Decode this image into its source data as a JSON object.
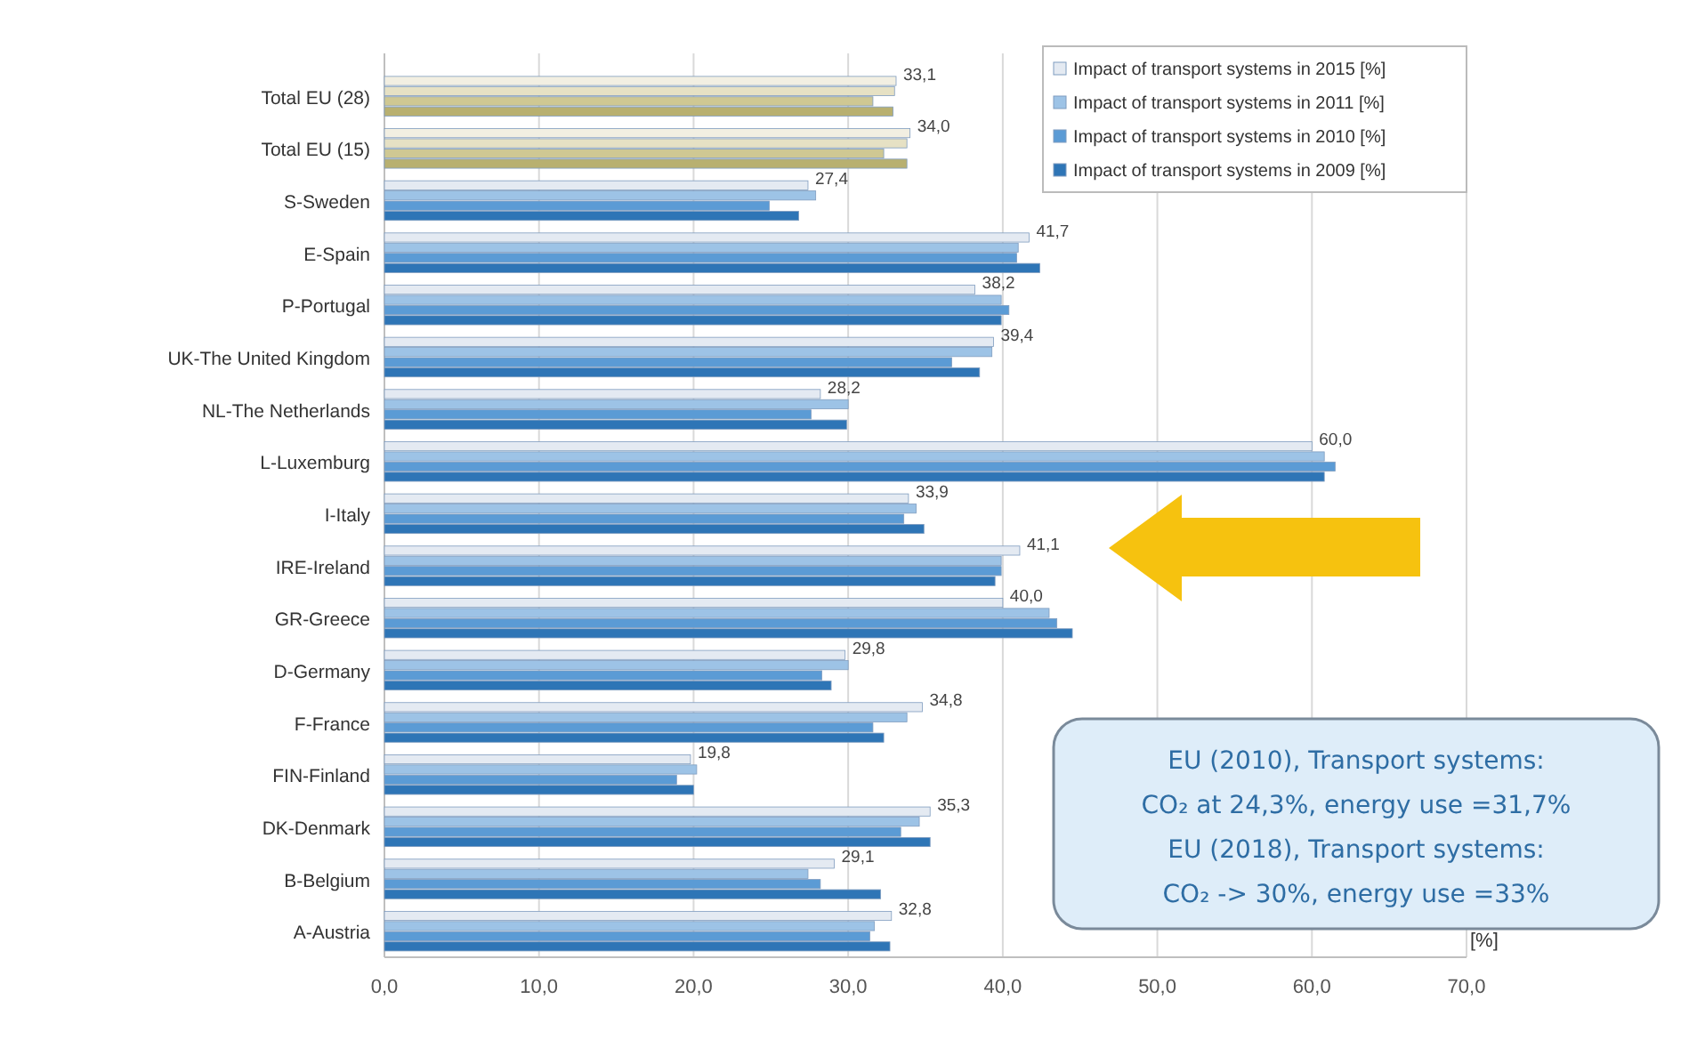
{
  "chart_data": {
    "type": "bar",
    "orientation": "horizontal",
    "xlabel": "[%]",
    "categories": [
      "Total EU (28)",
      "Total EU (15)",
      "S-Sweden",
      "E-Spain",
      "P-Portugal",
      "UK-The United Kingdom",
      "NL-The Netherlands",
      "L-Luxemburg",
      "I-Italy",
      "IRE-Ireland",
      "GR-Greece",
      "D-Germany",
      "F-France",
      "FIN-Finland",
      "DK-Denmark",
      "B-Belgium",
      "A-Austria"
    ],
    "series": [
      {
        "name": "Impact of transport systems in 2015 [%]",
        "color": "#e4eaf2",
        "colors": [
          "#f2efe2",
          "#f2efe2",
          "#e4eaf2",
          "#e4eaf2",
          "#e4eaf2",
          "#e4eaf2",
          "#e4eaf2",
          "#e4eaf2",
          "#e4eaf2",
          "#e4eaf2",
          "#e4eaf2",
          "#e4eaf2",
          "#e4eaf2",
          "#e4eaf2",
          "#e4eaf2",
          "#e4eaf2",
          "#e4eaf2"
        ],
        "values": [
          33.1,
          34.0,
          27.4,
          41.7,
          38.2,
          39.4,
          28.2,
          60.0,
          33.9,
          41.1,
          40.0,
          29.8,
          34.8,
          19.8,
          35.3,
          29.1,
          32.8
        ],
        "value_labels": [
          "33,1",
          "34,0",
          "27,4",
          "41,7",
          "38,2",
          "39,4",
          "28,2",
          "60,0",
          "33,9",
          "41,1",
          "40,0",
          "29,8",
          "34,8",
          "19,8",
          "35,3",
          "29,1",
          "32,8"
        ]
      },
      {
        "name": "Impact of transport systems in 2011 [%]",
        "color": "#9dc3e6",
        "colors": [
          "#e6e1c4",
          "#e6e1c4",
          "#9dc3e6",
          "#9dc3e6",
          "#9dc3e6",
          "#9dc3e6",
          "#9dc3e6",
          "#9dc3e6",
          "#9dc3e6",
          "#9dc3e6",
          "#9dc3e6",
          "#9dc3e6",
          "#9dc3e6",
          "#9dc3e6",
          "#9dc3e6",
          "#9dc3e6",
          "#9dc3e6"
        ],
        "values": [
          33.0,
          33.8,
          27.9,
          41.0,
          39.9,
          39.3,
          30.0,
          60.8,
          34.4,
          39.9,
          43.0,
          30.0,
          33.8,
          20.2,
          34.6,
          27.4,
          31.7
        ]
      },
      {
        "name": "Impact of transport systems in 2010 [%]",
        "color": "#5b9bd5",
        "colors": [
          "#cfc893",
          "#cfc893",
          "#5b9bd5",
          "#5b9bd5",
          "#5b9bd5",
          "#5b9bd5",
          "#5b9bd5",
          "#5b9bd5",
          "#5b9bd5",
          "#5b9bd5",
          "#5b9bd5",
          "#5b9bd5",
          "#5b9bd5",
          "#5b9bd5",
          "#5b9bd5",
          "#5b9bd5",
          "#5b9bd5"
        ],
        "values": [
          31.6,
          32.3,
          24.9,
          40.9,
          40.4,
          36.7,
          27.6,
          61.5,
          33.6,
          39.9,
          43.5,
          28.3,
          31.6,
          18.9,
          33.4,
          28.2,
          31.4
        ]
      },
      {
        "name": "Impact of transport systems in 2009 [%]",
        "color": "#2e75b6",
        "colors": [
          "#b8b070",
          "#b8b070",
          "#2e75b6",
          "#2e75b6",
          "#2e75b6",
          "#2e75b6",
          "#2e75b6",
          "#2e75b6",
          "#2e75b6",
          "#2e75b6",
          "#2e75b6",
          "#2e75b6",
          "#2e75b6",
          "#2e75b6",
          "#2e75b6",
          "#2e75b6",
          "#2e75b6"
        ],
        "values": [
          32.9,
          33.8,
          26.8,
          42.4,
          39.9,
          38.5,
          29.9,
          60.8,
          34.9,
          39.5,
          44.5,
          28.9,
          32.3,
          20.0,
          35.3,
          32.1,
          32.7
        ]
      }
    ],
    "xlim": [
      0,
      70
    ],
    "xticks": [
      {
        "value": 0,
        "label": "0,0"
      },
      {
        "value": 10,
        "label": "10,0"
      },
      {
        "value": 20,
        "label": "20,0"
      },
      {
        "value": 30,
        "label": "30,0"
      },
      {
        "value": 40,
        "label": "40,0"
      },
      {
        "value": 50,
        "label": "50,0"
      },
      {
        "value": 60,
        "label": "60,0"
      },
      {
        "value": 70,
        "label": "70,0"
      }
    ],
    "grid": "x",
    "legend": "top right",
    "annotations": [
      "EU (2010), Transport systems:\nCO₂ at 24,3%, energy use =31,7%\nEU (2018), Transport systems:\nCO₂ -> 30%, energy use =33%"
    ]
  }
}
